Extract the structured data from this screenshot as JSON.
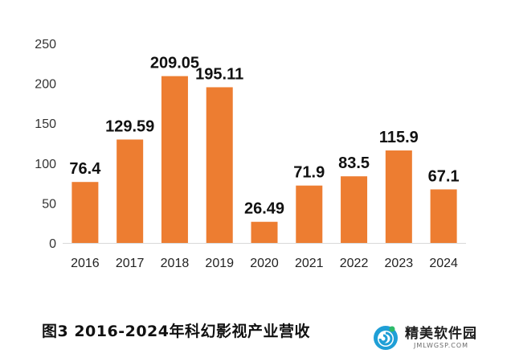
{
  "chart_data": {
    "type": "bar",
    "categories": [
      "2016",
      "2017",
      "2018",
      "2019",
      "2020",
      "2021",
      "2022",
      "2023",
      "2024"
    ],
    "values": [
      76.4,
      129.59,
      209.05,
      195.11,
      26.49,
      71.9,
      83.5,
      115.9,
      67.1
    ],
    "value_labels": [
      "76.4",
      "129.59",
      "209.05",
      "195.11",
      "26.49",
      "71.9",
      "83.5",
      "115.9",
      "67.1"
    ],
    "yticks": [
      "0",
      "50",
      "100",
      "150",
      "200",
      "250"
    ],
    "ylim": [
      0,
      250
    ],
    "grid": false,
    "bar_color": "#ED7D31"
  },
  "caption": "图3  2016-2024年科幻影视产业营收",
  "logo": {
    "name": "精美软件园",
    "url": "JMLWGSP.COM",
    "icon": "swirl-logo-icon"
  }
}
